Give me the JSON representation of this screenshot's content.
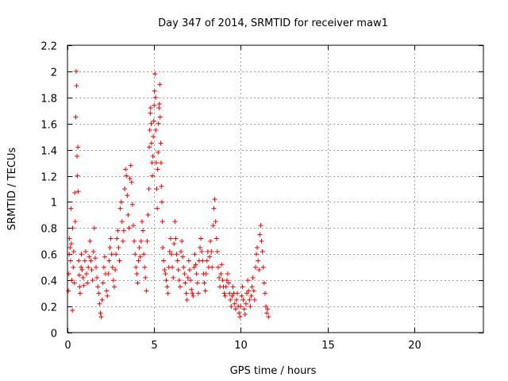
{
  "chart_data": {
    "type": "scatter",
    "title": "Day 347 of 2014, SRMTID for receiver maw1",
    "xlabel": "GPS time / hours",
    "ylabel": "SRMTID / TECUs",
    "xlim": [
      0,
      24
    ],
    "ylim": [
      0,
      2.2
    ],
    "x_ticks": [
      0,
      5,
      10,
      15,
      20
    ],
    "x_tick_labels": [
      "0",
      "5",
      "10",
      "15",
      "20"
    ],
    "y_ticks": [
      0,
      0.2,
      0.4,
      0.6,
      0.8,
      1.0,
      1.2,
      1.4,
      1.6,
      1.8,
      2.0,
      2.2
    ],
    "y_tick_labels": [
      "0",
      "0.2",
      "0.4",
      "0.6",
      "0.8",
      "1",
      "1.2",
      "1.4",
      "1.6",
      "1.8",
      "2",
      "2.2"
    ],
    "grid": true,
    "marker": "+",
    "color": "#ff0000",
    "series": [
      {
        "name": "maw1",
        "points": [
          [
            0.05,
            0.32
          ],
          [
            0.08,
            0.45
          ],
          [
            0.1,
            0.6
          ],
          [
            0.12,
            0.72
          ],
          [
            0.15,
            0.65
          ],
          [
            0.18,
            0.55
          ],
          [
            0.2,
            0.95
          ],
          [
            0.22,
            0.68
          ],
          [
            0.25,
            0.4
          ],
          [
            0.28,
            0.17
          ],
          [
            0.3,
            0.8
          ],
          [
            0.33,
            0.5
          ],
          [
            0.36,
            0.62
          ],
          [
            0.4,
            0.38
          ],
          [
            0.42,
            1.07
          ],
          [
            0.45,
            0.85
          ],
          [
            0.48,
            1.65
          ],
          [
            0.5,
            2.0
          ],
          [
            0.52,
            1.89
          ],
          [
            0.55,
            1.35
          ],
          [
            0.57,
            1.2
          ],
          [
            0.6,
            1.42
          ],
          [
            0.62,
            1.08
          ],
          [
            0.65,
            0.55
          ],
          [
            0.68,
            0.44
          ],
          [
            0.7,
            0.35
          ],
          [
            0.73,
            0.3
          ],
          [
            0.78,
            0.5
          ],
          [
            0.8,
            0.6
          ],
          [
            0.85,
            0.48
          ],
          [
            0.9,
            0.42
          ],
          [
            0.95,
            0.36
          ],
          [
            1.0,
            0.55
          ],
          [
            1.05,
            0.62
          ],
          [
            1.1,
            0.45
          ],
          [
            1.15,
            0.38
          ],
          [
            1.2,
            0.5
          ],
          [
            1.25,
            0.58
          ],
          [
            1.3,
            0.7
          ],
          [
            1.35,
            0.55
          ],
          [
            1.4,
            0.48
          ],
          [
            1.45,
            0.4
          ],
          [
            1.5,
            0.62
          ],
          [
            1.55,
            0.8
          ],
          [
            1.6,
            0.57
          ],
          [
            1.65,
            0.5
          ],
          [
            1.7,
            0.42
          ],
          [
            1.75,
            0.35
          ],
          [
            1.8,
            0.3
          ],
          [
            1.85,
            0.22
          ],
          [
            1.9,
            0.15
          ],
          [
            1.95,
            0.12
          ],
          [
            2.0,
            0.25
          ],
          [
            2.05,
            0.38
          ],
          [
            2.1,
            0.5
          ],
          [
            2.15,
            0.58
          ],
          [
            2.2,
            0.45
          ],
          [
            2.25,
            0.32
          ],
          [
            2.3,
            0.28
          ],
          [
            2.35,
            0.45
          ],
          [
            2.4,
            0.55
          ],
          [
            2.45,
            0.65
          ],
          [
            2.5,
            0.72
          ],
          [
            2.55,
            0.6
          ],
          [
            2.6,
            0.5
          ],
          [
            2.65,
            0.4
          ],
          [
            2.7,
            0.35
          ],
          [
            2.75,
            0.48
          ],
          [
            2.8,
            0.6
          ],
          [
            2.85,
            0.72
          ],
          [
            2.9,
            0.78
          ],
          [
            2.95,
            0.65
          ],
          [
            3.0,
            0.55
          ],
          [
            3.05,
            0.95
          ],
          [
            3.1,
            1.0
          ],
          [
            3.15,
            0.85
          ],
          [
            3.2,
            0.7
          ],
          [
            3.25,
            0.78
          ],
          [
            3.3,
            1.1
          ],
          [
            3.35,
            1.25
          ],
          [
            3.4,
            1.2
          ],
          [
            3.45,
            1.05
          ],
          [
            3.5,
            0.9
          ],
          [
            3.55,
            0.8
          ],
          [
            3.6,
            1.18
          ],
          [
            3.65,
            1.28
          ],
          [
            3.7,
            1.15
          ],
          [
            3.75,
            0.98
          ],
          [
            3.8,
            0.82
          ],
          [
            3.85,
            0.7
          ],
          [
            3.9,
            0.6
          ],
          [
            3.95,
            0.5
          ],
          [
            4.0,
            0.45
          ],
          [
            4.05,
            0.38
          ],
          [
            4.1,
            0.55
          ],
          [
            4.15,
            0.65
          ],
          [
            4.2,
            0.58
          ],
          [
            4.25,
            0.7
          ],
          [
            4.3,
            0.85
          ],
          [
            4.35,
            0.78
          ],
          [
            4.4,
            0.6
          ],
          [
            4.45,
            0.5
          ],
          [
            4.5,
            0.42
          ],
          [
            4.55,
            0.32
          ],
          [
            4.6,
            0.7
          ],
          [
            4.65,
            0.9
          ],
          [
            4.7,
            1.1
          ],
          [
            4.72,
            1.42
          ],
          [
            4.75,
            1.55
          ],
          [
            4.78,
            1.68
          ],
          [
            4.8,
            1.72
          ],
          [
            4.83,
            1.6
          ],
          [
            4.85,
            1.45
          ],
          [
            4.88,
            1.3
          ],
          [
            4.9,
            1.2
          ],
          [
            4.93,
            1.35
          ],
          [
            4.95,
            1.5
          ],
          [
            4.98,
            1.62
          ],
          [
            5.0,
            1.74
          ],
          [
            5.02,
            1.85
          ],
          [
            5.05,
            1.98
          ],
          [
            5.08,
            1.8
          ],
          [
            5.1,
            1.55
          ],
          [
            5.12,
            1.3
          ],
          [
            5.15,
            1.1
          ],
          [
            5.18,
            0.95
          ],
          [
            5.2,
            1.25
          ],
          [
            5.23,
            1.38
          ],
          [
            5.25,
            1.6
          ],
          [
            5.28,
            1.72
          ],
          [
            5.3,
            1.75
          ],
          [
            5.33,
            1.9
          ],
          [
            5.35,
            1.65
          ],
          [
            5.38,
            1.45
          ],
          [
            5.4,
            1.3
          ],
          [
            5.42,
            1.12
          ],
          [
            5.45,
            1.0
          ],
          [
            5.48,
            0.85
          ],
          [
            5.5,
            0.65
          ],
          [
            5.55,
            0.55
          ],
          [
            5.6,
            0.48
          ],
          [
            5.65,
            0.45
          ],
          [
            5.7,
            0.4
          ],
          [
            5.75,
            0.35
          ],
          [
            5.8,
            0.3
          ],
          [
            5.85,
            0.5
          ],
          [
            5.9,
            0.62
          ],
          [
            5.95,
            0.72
          ],
          [
            6.0,
            0.6
          ],
          [
            6.05,
            0.5
          ],
          [
            6.1,
            0.42
          ],
          [
            6.15,
            0.68
          ],
          [
            6.2,
            0.85
          ],
          [
            6.25,
            0.72
          ],
          [
            6.3,
            0.6
          ],
          [
            6.35,
            0.55
          ],
          [
            6.4,
            0.48
          ],
          [
            6.45,
            0.4
          ],
          [
            6.5,
            0.35
          ],
          [
            6.55,
            0.62
          ],
          [
            6.6,
            0.7
          ],
          [
            6.65,
            0.58
          ],
          [
            6.7,
            0.5
          ],
          [
            6.75,
            0.45
          ],
          [
            6.8,
            0.38
          ],
          [
            6.85,
            0.3
          ],
          [
            6.9,
            0.25
          ],
          [
            6.95,
            0.42
          ],
          [
            7.0,
            0.55
          ],
          [
            7.05,
            0.48
          ],
          [
            7.1,
            0.4
          ],
          [
            7.15,
            0.33
          ],
          [
            7.2,
            0.3
          ],
          [
            7.25,
            0.28
          ],
          [
            7.3,
            0.5
          ],
          [
            7.35,
            0.6
          ],
          [
            7.4,
            0.52
          ],
          [
            7.45,
            0.45
          ],
          [
            7.5,
            0.38
          ],
          [
            7.55,
            0.3
          ],
          [
            7.6,
            0.55
          ],
          [
            7.65,
            0.65
          ],
          [
            7.7,
            0.72
          ],
          [
            7.75,
            0.62
          ],
          [
            7.8,
            0.55
          ],
          [
            7.85,
            0.45
          ],
          [
            7.9,
            0.38
          ],
          [
            7.95,
            0.32
          ],
          [
            8.0,
            0.45
          ],
          [
            8.05,
            0.55
          ],
          [
            8.1,
            0.62
          ],
          [
            8.15,
            0.5
          ],
          [
            8.2,
            0.58
          ],
          [
            8.25,
            0.7
          ],
          [
            8.3,
            0.62
          ],
          [
            8.35,
            0.5
          ],
          [
            8.4,
            0.82
          ],
          [
            8.45,
            0.95
          ],
          [
            8.5,
            1.02
          ],
          [
            8.55,
            0.85
          ],
          [
            8.6,
            0.72
          ],
          [
            8.65,
            0.62
          ],
          [
            8.7,
            0.5
          ],
          [
            8.75,
            0.42
          ],
          [
            8.8,
            0.35
          ],
          [
            8.85,
            0.45
          ],
          [
            8.9,
            0.52
          ],
          [
            8.95,
            0.4
          ],
          [
            9.0,
            0.35
          ],
          [
            9.05,
            0.3
          ],
          [
            9.1,
            0.28
          ],
          [
            9.15,
            0.35
          ],
          [
            9.2,
            0.4
          ],
          [
            9.25,
            0.45
          ],
          [
            9.3,
            0.38
          ],
          [
            9.35,
            0.3
          ],
          [
            9.4,
            0.25
          ],
          [
            9.45,
            0.2
          ],
          [
            9.5,
            0.28
          ],
          [
            9.55,
            0.35
          ],
          [
            9.6,
            0.3
          ],
          [
            9.65,
            0.22
          ],
          [
            9.7,
            0.18
          ],
          [
            9.75,
            0.25
          ],
          [
            9.8,
            0.3
          ],
          [
            9.85,
            0.2
          ],
          [
            9.9,
            0.15
          ],
          [
            9.95,
            0.12
          ],
          [
            10.0,
            0.2
          ],
          [
            10.05,
            0.28
          ],
          [
            10.1,
            0.35
          ],
          [
            10.15,
            0.25
          ],
          [
            10.2,
            0.18
          ],
          [
            10.25,
            0.14
          ],
          [
            10.3,
            0.22
          ],
          [
            10.35,
            0.3
          ],
          [
            10.4,
            0.4
          ],
          [
            10.45,
            0.32
          ],
          [
            10.5,
            0.25
          ],
          [
            10.55,
            0.2
          ],
          [
            10.6,
            0.28
          ],
          [
            10.65,
            0.35
          ],
          [
            10.7,
            0.42
          ],
          [
            10.75,
            0.32
          ],
          [
            10.8,
            0.25
          ],
          [
            10.85,
            0.5
          ],
          [
            10.9,
            0.6
          ],
          [
            10.95,
            0.65
          ],
          [
            11.0,
            0.55
          ],
          [
            11.05,
            0.48
          ],
          [
            11.1,
            0.75
          ],
          [
            11.15,
            0.82
          ],
          [
            11.2,
            0.7
          ],
          [
            11.25,
            0.62
          ],
          [
            11.3,
            0.5
          ],
          [
            11.35,
            0.38
          ],
          [
            11.4,
            0.3
          ],
          [
            11.45,
            0.2
          ],
          [
            11.5,
            0.15
          ],
          [
            11.55,
            0.18
          ],
          [
            11.6,
            0.12
          ]
        ]
      }
    ]
  }
}
